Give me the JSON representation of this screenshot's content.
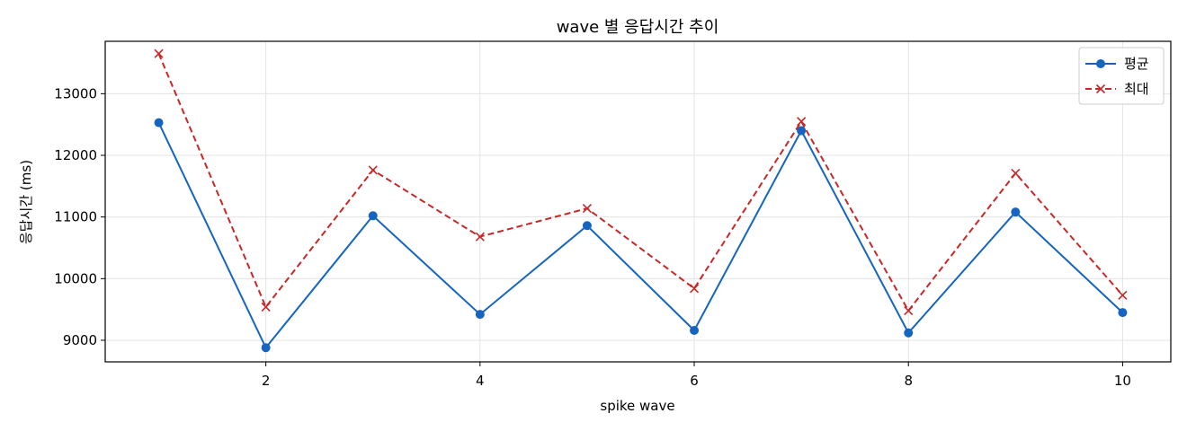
{
  "chart_data": {
    "type": "line",
    "title": "wave 별 응답시간 추이",
    "xlabel": "spike wave",
    "ylabel": "응답시간 (ms)",
    "xlim": [
      0.5,
      10.45
    ],
    "ylim": [
      8650,
      13850
    ],
    "xticks": [
      2,
      4,
      6,
      8,
      10
    ],
    "yticks": [
      9000,
      10000,
      11000,
      12000,
      13000
    ],
    "grid": true,
    "legend_position": "top-right",
    "x": [
      1,
      2,
      3,
      4,
      5,
      6,
      7,
      8,
      9,
      10
    ],
    "series": [
      {
        "name": "평균",
        "color": "#1565c0",
        "marker": "circle",
        "line_style": "solid",
        "values": [
          12530,
          8880,
          11020,
          9420,
          10860,
          9160,
          12400,
          9120,
          11080,
          9450
        ]
      },
      {
        "name": "최대",
        "color": "#c62828",
        "marker": "x",
        "line_style": "dashed",
        "values": [
          13650,
          9540,
          11760,
          10680,
          11140,
          9840,
          12550,
          9480,
          11710,
          9730
        ]
      }
    ]
  }
}
